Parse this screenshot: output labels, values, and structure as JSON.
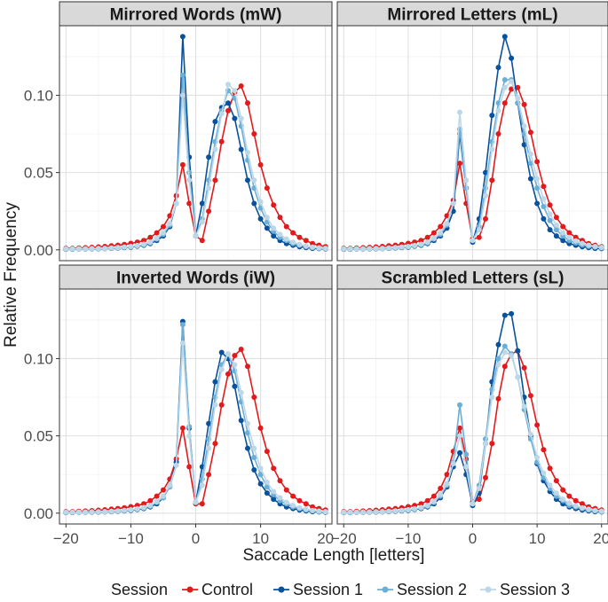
{
  "chart_data": {
    "type": "line",
    "xlabel": "Saccade Length [letters]",
    "ylabel": "Relative Frequency",
    "xlim": [
      -21,
      21
    ],
    "ylim": [
      -0.007,
      0.145
    ],
    "x_ticks": [
      -20,
      -10,
      0,
      10,
      20
    ],
    "x_tick_labels": [
      "−20",
      "−10",
      "0",
      "10",
      "20"
    ],
    "y_ticks": [
      0,
      0.05,
      0.1
    ],
    "y_tick_labels": [
      "0.00",
      "0.05",
      "0.10"
    ],
    "grid": true,
    "legend": {
      "title": "Session",
      "position": "bottom",
      "items": [
        {
          "name": "Control",
          "color": "#e31a1c"
        },
        {
          "name": "Session 1",
          "color": "#08519c"
        },
        {
          "name": "Session 2",
          "color": "#6baed6"
        },
        {
          "name": "Session 3",
          "color": "#bdd7e7"
        }
      ]
    },
    "x": [
      -20,
      -19,
      -18,
      -17,
      -16,
      -15,
      -14,
      -13,
      -12,
      -11,
      -10,
      -9,
      -8,
      -7,
      -6,
      -5,
      -4,
      -3,
      -2,
      -1,
      0,
      1,
      2,
      3,
      4,
      5,
      6,
      7,
      8,
      9,
      10,
      11,
      12,
      13,
      14,
      15,
      16,
      17,
      18,
      19,
      20
    ],
    "panels": [
      {
        "title": "Mirrored Words (mW)",
        "series": [
          {
            "name": "Control",
            "values": [
              0.001,
              0.001,
              0.0012,
              0.0014,
              0.0016,
              0.0019,
              0.0022,
              0.0026,
              0.003,
              0.0035,
              0.0042,
              0.005,
              0.006,
              0.008,
              0.011,
              0.015,
              0.022,
              0.035,
              0.055,
              0.03,
              0.009,
              0.006,
              0.025,
              0.045,
              0.07,
              0.09,
              0.102,
              0.106,
              0.095,
              0.075,
              0.055,
              0.04,
              0.029,
              0.021,
              0.015,
              0.011,
              0.008,
              0.006,
              0.004,
              0.003,
              0.002
            ]
          },
          {
            "name": "Session 1",
            "values": [
              0.0004,
              0.0004,
              0.0005,
              0.0005,
              0.0006,
              0.0007,
              0.0008,
              0.001,
              0.0012,
              0.0015,
              0.0018,
              0.0023,
              0.003,
              0.004,
              0.006,
              0.009,
              0.015,
              0.03,
              0.138,
              0.06,
              0.009,
              0.03,
              0.06,
              0.083,
              0.092,
              0.095,
              0.085,
              0.065,
              0.045,
              0.03,
              0.02,
              0.014,
              0.009,
              0.006,
              0.004,
              0.003,
              0.002,
              0.0015,
              0.001,
              0.0008,
              0.0006
            ]
          },
          {
            "name": "Session 2",
            "values": [
              0.0005,
              0.0005,
              0.0006,
              0.0006,
              0.0007,
              0.0008,
              0.001,
              0.0012,
              0.0014,
              0.0017,
              0.002,
              0.0025,
              0.0033,
              0.0045,
              0.007,
              0.01,
              0.016,
              0.03,
              0.113,
              0.05,
              0.009,
              0.02,
              0.045,
              0.07,
              0.09,
              0.103,
              0.098,
              0.08,
              0.058,
              0.04,
              0.027,
              0.018,
              0.012,
              0.008,
              0.006,
              0.004,
              0.003,
              0.002,
              0.0015,
              0.001,
              0.0008
            ]
          },
          {
            "name": "Session 3",
            "values": [
              0.0006,
              0.0006,
              0.0007,
              0.0007,
              0.0008,
              0.0009,
              0.001,
              0.0012,
              0.0015,
              0.0018,
              0.0022,
              0.0028,
              0.0036,
              0.005,
              0.0075,
              0.011,
              0.017,
              0.03,
              0.1,
              0.045,
              0.009,
              0.018,
              0.04,
              0.065,
              0.088,
              0.107,
              0.103,
              0.085,
              0.063,
              0.045,
              0.031,
              0.021,
              0.014,
              0.01,
              0.007,
              0.005,
              0.0035,
              0.0025,
              0.0018,
              0.0013,
              0.001
            ]
          }
        ]
      },
      {
        "title": "Mirrored Letters (mL)",
        "series": [
          {
            "name": "Control",
            "values": [
              0.001,
              0.001,
              0.0012,
              0.0014,
              0.0016,
              0.0019,
              0.0022,
              0.0026,
              0.003,
              0.0035,
              0.0042,
              0.005,
              0.006,
              0.008,
              0.011,
              0.015,
              0.022,
              0.032,
              0.056,
              0.03,
              0.007,
              0.008,
              0.02,
              0.045,
              0.075,
              0.095,
              0.104,
              0.105,
              0.094,
              0.076,
              0.057,
              0.041,
              0.029,
              0.021,
              0.015,
              0.011,
              0.008,
              0.006,
              0.004,
              0.003,
              0.002
            ]
          },
          {
            "name": "Session 1",
            "values": [
              0.0004,
              0.0004,
              0.0005,
              0.0005,
              0.0006,
              0.0007,
              0.0008,
              0.001,
              0.0012,
              0.0015,
              0.0018,
              0.0023,
              0.003,
              0.004,
              0.006,
              0.009,
              0.014,
              0.025,
              0.075,
              0.04,
              0.005,
              0.02,
              0.05,
              0.087,
              0.118,
              0.138,
              0.124,
              0.095,
              0.068,
              0.046,
              0.03,
              0.02,
              0.013,
              0.009,
              0.006,
              0.004,
              0.003,
              0.002,
              0.0015,
              0.001,
              0.0008
            ]
          },
          {
            "name": "Session 2",
            "values": [
              0.0005,
              0.0005,
              0.0006,
              0.0006,
              0.0007,
              0.0008,
              0.001,
              0.0012,
              0.0014,
              0.0017,
              0.002,
              0.0025,
              0.0033,
              0.0045,
              0.007,
              0.01,
              0.016,
              0.03,
              0.078,
              0.04,
              0.006,
              0.015,
              0.04,
              0.07,
              0.095,
              0.11,
              0.11,
              0.095,
              0.075,
              0.056,
              0.04,
              0.028,
              0.019,
              0.013,
              0.009,
              0.006,
              0.0045,
              0.0032,
              0.0023,
              0.0017,
              0.0012
            ]
          },
          {
            "name": "Session 3",
            "values": [
              0.0006,
              0.0006,
              0.0007,
              0.0007,
              0.0008,
              0.0009,
              0.001,
              0.0012,
              0.0015,
              0.0018,
              0.0022,
              0.0028,
              0.0036,
              0.005,
              0.0075,
              0.011,
              0.017,
              0.03,
              0.089,
              0.045,
              0.006,
              0.013,
              0.035,
              0.065,
              0.09,
              0.105,
              0.109,
              0.098,
              0.08,
              0.062,
              0.046,
              0.033,
              0.023,
              0.016,
              0.011,
              0.008,
              0.0058,
              0.0042,
              0.003,
              0.0022,
              0.0016
            ]
          }
        ]
      },
      {
        "title": "Inverted Words (iW)",
        "series": [
          {
            "name": "Control",
            "values": [
              0.001,
              0.001,
              0.0012,
              0.0014,
              0.0016,
              0.0019,
              0.0022,
              0.0026,
              0.003,
              0.0035,
              0.0042,
              0.005,
              0.006,
              0.008,
              0.011,
              0.015,
              0.022,
              0.035,
              0.055,
              0.03,
              0.006,
              0.006,
              0.025,
              0.045,
              0.07,
              0.09,
              0.102,
              0.106,
              0.095,
              0.075,
              0.055,
              0.04,
              0.029,
              0.021,
              0.015,
              0.011,
              0.008,
              0.006,
              0.004,
              0.003,
              0.002
            ]
          },
          {
            "name": "Session 1",
            "values": [
              0.0004,
              0.0004,
              0.0005,
              0.0005,
              0.0006,
              0.0007,
              0.0008,
              0.001,
              0.0012,
              0.0015,
              0.0018,
              0.0023,
              0.003,
              0.004,
              0.006,
              0.01,
              0.018,
              0.033,
              0.124,
              0.055,
              0.007,
              0.03,
              0.058,
              0.085,
              0.104,
              0.1,
              0.082,
              0.06,
              0.042,
              0.028,
              0.019,
              0.013,
              0.009,
              0.006,
              0.004,
              0.003,
              0.002,
              0.0015,
              0.001,
              0.0008,
              0.0006
            ]
          },
          {
            "name": "Session 2",
            "values": [
              0.0005,
              0.0005,
              0.0006,
              0.0006,
              0.0007,
              0.0008,
              0.001,
              0.0012,
              0.0014,
              0.0017,
              0.002,
              0.0025,
              0.0033,
              0.0045,
              0.007,
              0.01,
              0.017,
              0.031,
              0.122,
              0.056,
              0.007,
              0.022,
              0.048,
              0.075,
              0.096,
              0.103,
              0.092,
              0.072,
              0.052,
              0.036,
              0.025,
              0.017,
              0.012,
              0.008,
              0.006,
              0.004,
              0.003,
              0.002,
              0.0015,
              0.001,
              0.0008
            ]
          },
          {
            "name": "Session 3",
            "values": [
              0.0006,
              0.0006,
              0.0007,
              0.0007,
              0.0008,
              0.0009,
              0.001,
              0.0012,
              0.0015,
              0.0018,
              0.0022,
              0.0028,
              0.0036,
              0.005,
              0.0075,
              0.011,
              0.018,
              0.031,
              0.11,
              0.05,
              0.007,
              0.018,
              0.042,
              0.07,
              0.093,
              0.103,
              0.096,
              0.078,
              0.058,
              0.042,
              0.029,
              0.02,
              0.014,
              0.01,
              0.007,
              0.005,
              0.0035,
              0.0025,
              0.0018,
              0.0013,
              0.001
            ]
          }
        ]
      },
      {
        "title": "Scrambled Letters (sL)",
        "series": [
          {
            "name": "Control",
            "values": [
              0.001,
              0.001,
              0.0012,
              0.0014,
              0.0016,
              0.0019,
              0.0022,
              0.0026,
              0.003,
              0.0035,
              0.0042,
              0.005,
              0.006,
              0.008,
              0.011,
              0.016,
              0.025,
              0.04,
              0.055,
              0.035,
              0.007,
              0.009,
              0.023,
              0.045,
              0.074,
              0.095,
              0.103,
              0.105,
              0.094,
              0.076,
              0.057,
              0.041,
              0.029,
              0.021,
              0.015,
              0.011,
              0.008,
              0.006,
              0.004,
              0.003,
              0.002
            ]
          },
          {
            "name": "Session 1",
            "values": [
              0.0004,
              0.0004,
              0.0005,
              0.0005,
              0.0006,
              0.0007,
              0.0008,
              0.001,
              0.0012,
              0.0015,
              0.0018,
              0.0023,
              0.003,
              0.004,
              0.006,
              0.01,
              0.017,
              0.03,
              0.039,
              0.025,
              0.005,
              0.013,
              0.045,
              0.085,
              0.109,
              0.128,
              0.129,
              0.105,
              0.075,
              0.05,
              0.032,
              0.021,
              0.014,
              0.009,
              0.006,
              0.004,
              0.003,
              0.002,
              0.0015,
              0.001,
              0.0008
            ]
          },
          {
            "name": "Session 2",
            "values": [
              0.0005,
              0.0005,
              0.0006,
              0.0006,
              0.0007,
              0.0008,
              0.001,
              0.0012,
              0.0014,
              0.0017,
              0.002,
              0.0025,
              0.0033,
              0.0045,
              0.007,
              0.011,
              0.018,
              0.033,
              0.07,
              0.038,
              0.006,
              0.018,
              0.048,
              0.08,
              0.1,
              0.108,
              0.103,
              0.088,
              0.067,
              0.048,
              0.033,
              0.023,
              0.016,
              0.011,
              0.008,
              0.005,
              0.004,
              0.003,
              0.002,
              0.0015,
              0.001
            ]
          },
          {
            "name": "Session 3",
            "values": [
              0.0006,
              0.0006,
              0.0007,
              0.0007,
              0.0008,
              0.0009,
              0.001,
              0.0012,
              0.0015,
              0.0018,
              0.0022,
              0.0028,
              0.0036,
              0.005,
              0.0075,
              0.012,
              0.019,
              0.032,
              0.05,
              0.03,
              0.006,
              0.016,
              0.045,
              0.075,
              0.096,
              0.104,
              0.102,
              0.088,
              0.069,
              0.051,
              0.036,
              0.026,
              0.018,
              0.013,
              0.009,
              0.0065,
              0.0047,
              0.0034,
              0.0025,
              0.0018,
              0.0013
            ]
          }
        ]
      }
    ]
  }
}
